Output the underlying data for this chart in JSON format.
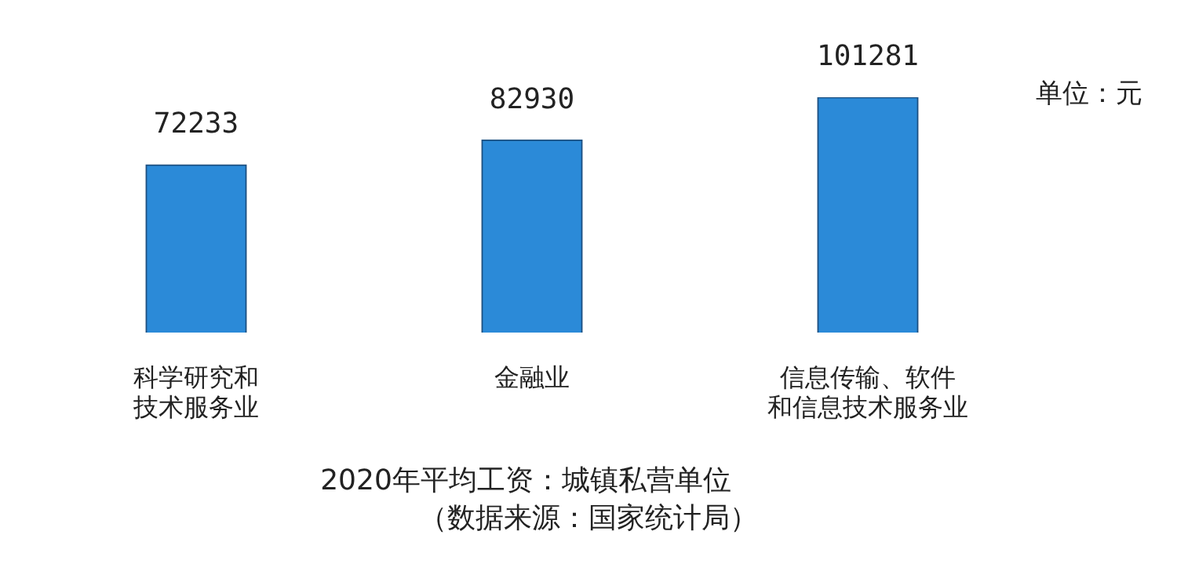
{
  "chart_data": {
    "type": "bar",
    "title": "2020年平均工资：城镇私营单位",
    "categories": [
      "科学研究和技术服务业",
      "金融业",
      "信息传输、软件和信息技术服务业"
    ],
    "values": [
      72233,
      82930,
      101281
    ],
    "color": "#2b8ad8",
    "data_labels": true,
    "grid": false,
    "legend": false,
    "annotations": [
      "单位：元",
      "（数据来源：国家统计局）"
    ]
  }
}
